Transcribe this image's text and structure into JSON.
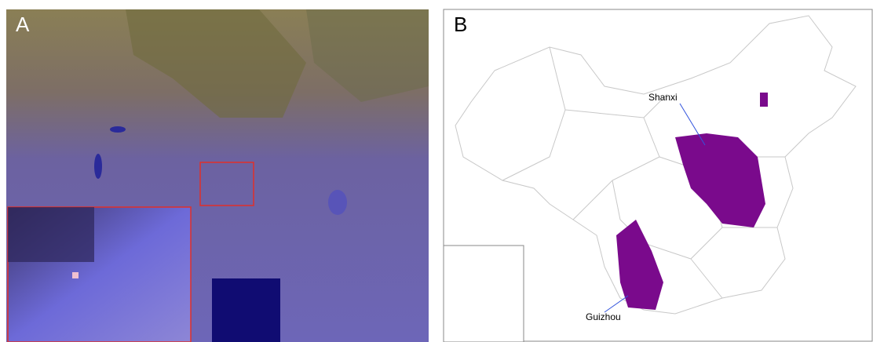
{
  "panels": [
    {
      "label": "A"
    },
    {
      "label": "B",
      "annotations": [
        {
          "label": "Shanxi"
        },
        {
          "label": "Guizhou"
        }
      ]
    }
  ]
}
